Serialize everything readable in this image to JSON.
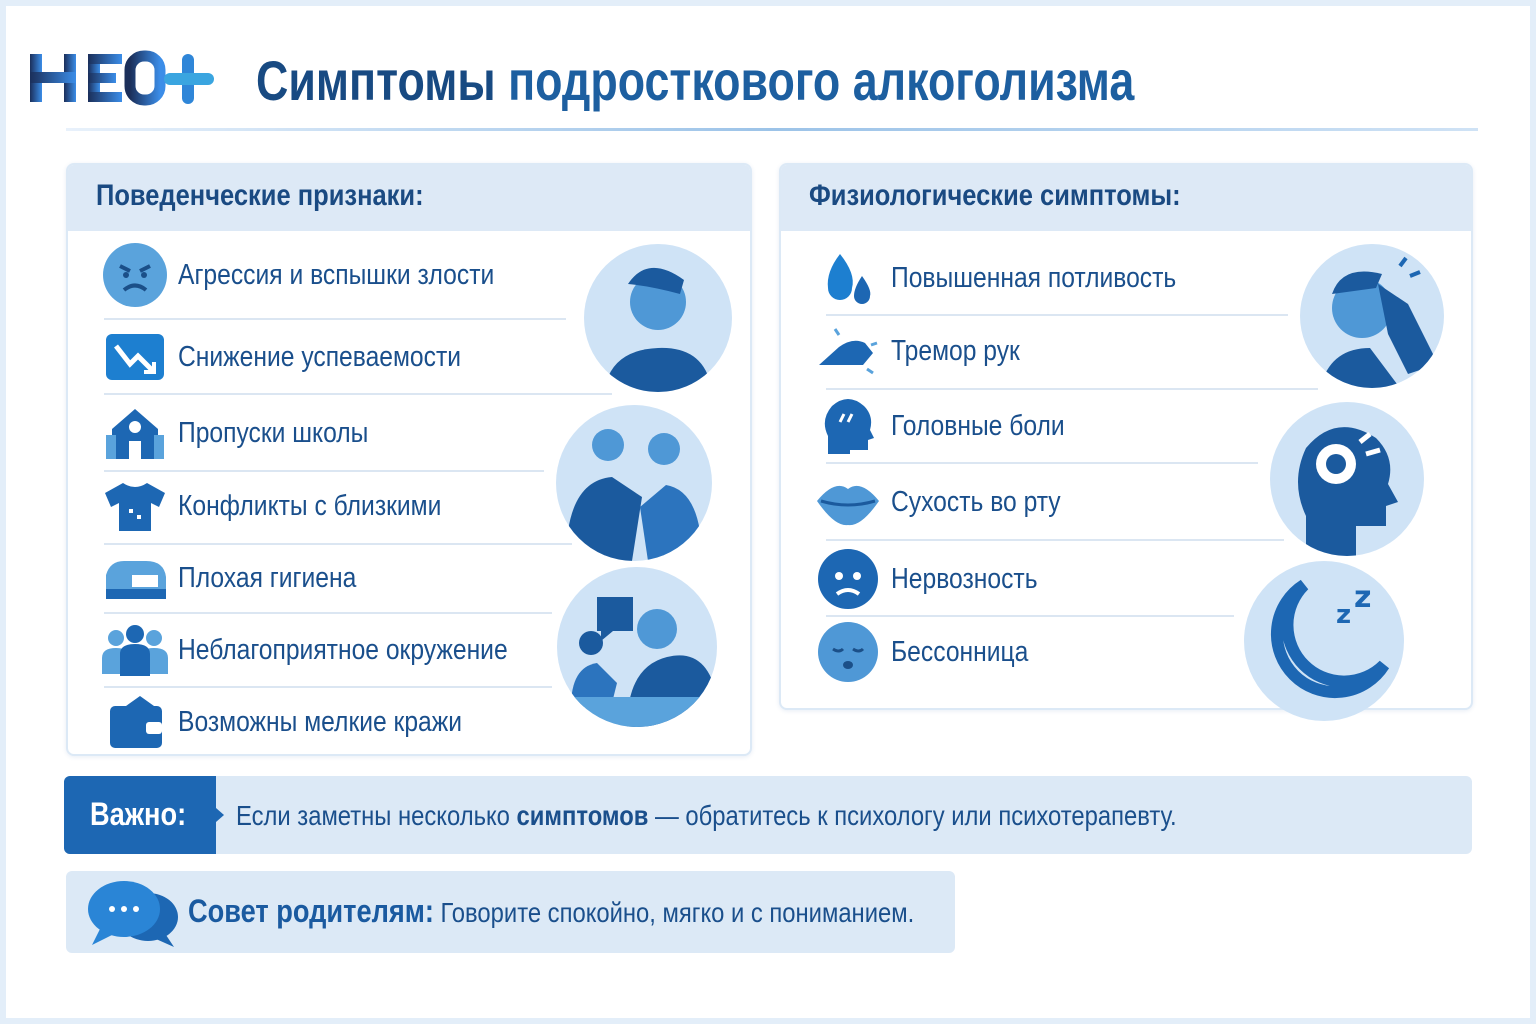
{
  "logo": {
    "text": "НЕО+"
  },
  "header": {
    "title_part1": "Симптомы",
    "title_part2": "подросткового алкоголизма"
  },
  "behavioral": {
    "heading": "Поведенческие признаки:",
    "items": [
      {
        "label": "Агрессия и вспышки злости",
        "icon": "angry-face-icon"
      },
      {
        "label": "Снижение успеваемости",
        "icon": "chart-down-icon"
      },
      {
        "label": "Пропуски школы",
        "icon": "school-icon"
      },
      {
        "label": "Конфликты с близкими",
        "icon": "shirt-icon"
      },
      {
        "label": "Плохая гигиена",
        "icon": "hygiene-icon"
      },
      {
        "label": "Неблагоприятное окружение",
        "icon": "group-icon"
      },
      {
        "label": "Возможны мелкие кражи",
        "icon": "wallet-icon"
      }
    ]
  },
  "physiological": {
    "heading": "Физиологические симптомы:",
    "items": [
      {
        "label": "Повышенная потливость",
        "icon": "sweat-drops-icon"
      },
      {
        "label": "Тремор рук",
        "icon": "shaking-hand-icon"
      },
      {
        "label": "Головные боли",
        "icon": "head-pain-icon"
      },
      {
        "label": "Сухость во рту",
        "icon": "lips-icon"
      },
      {
        "label": "Нервозность",
        "icon": "nervous-face-icon"
      },
      {
        "label": "Бессонница",
        "icon": "sleepy-face-icon"
      }
    ]
  },
  "important": {
    "label": "Важно:",
    "text_before": "Если заметны несколько ",
    "text_bold": "симптомов",
    "text_after": " — обратитесь к психологу или психотерапевту."
  },
  "advice": {
    "label": "Совет родителям:",
    "text": " Говорите спокойно, мягко и с пониманием."
  },
  "colors": {
    "primary": "#1d67b3",
    "navy": "#184a82",
    "panel_bg": "#dce9f6",
    "illustration_bg": "#cfe3f6"
  }
}
